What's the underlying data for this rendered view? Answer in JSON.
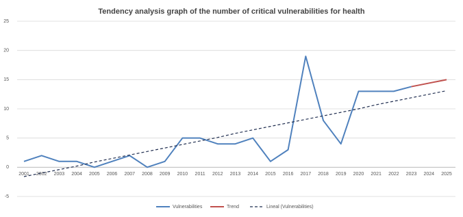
{
  "chart_data": {
    "type": "line",
    "title": "Tendency analysis graph of the number of critical vulnerabilities for health",
    "categories": [
      "2001",
      "2002",
      "2003",
      "2004",
      "2005",
      "2006",
      "2007",
      "2008",
      "2009",
      "2010",
      "2011",
      "2012",
      "2013",
      "2014",
      "2015",
      "2016",
      "2017",
      "2018",
      "2019",
      "2020",
      "2021",
      "2022",
      "2023",
      "2024",
      "2025"
    ],
    "series": [
      {
        "name": "Vulnerabilities",
        "color": "#4f81bd",
        "dash": false,
        "values": [
          1,
          2,
          1,
          1,
          0,
          1,
          2,
          0,
          1,
          5,
          5,
          4,
          4,
          5,
          1,
          3,
          19,
          8,
          4,
          13,
          13,
          13,
          13.8,
          null,
          null
        ]
      },
      {
        "name": "Trend",
        "color": "#c0504d",
        "dash": false,
        "values": [
          null,
          null,
          null,
          null,
          null,
          null,
          null,
          null,
          null,
          null,
          null,
          null,
          null,
          null,
          null,
          null,
          null,
          null,
          null,
          null,
          null,
          null,
          13.8,
          14.4,
          15
        ]
      },
      {
        "name": "Lineal (Vulnerabilities)",
        "color": "#1f2d4f",
        "dash": true,
        "values": [
          -1.6,
          -1.0,
          -0.4,
          0.2,
          0.9,
          1.5,
          2.1,
          2.7,
          3.3,
          3.9,
          4.5,
          5.1,
          5.8,
          6.4,
          7.0,
          7.6,
          8.2,
          8.8,
          9.4,
          10.0,
          10.7,
          11.3,
          11.9,
          12.5,
          13.1
        ]
      }
    ],
    "ylim": [
      -5,
      25
    ],
    "yticks": [
      -5,
      0,
      5,
      10,
      15,
      20,
      25
    ],
    "grid": true
  }
}
